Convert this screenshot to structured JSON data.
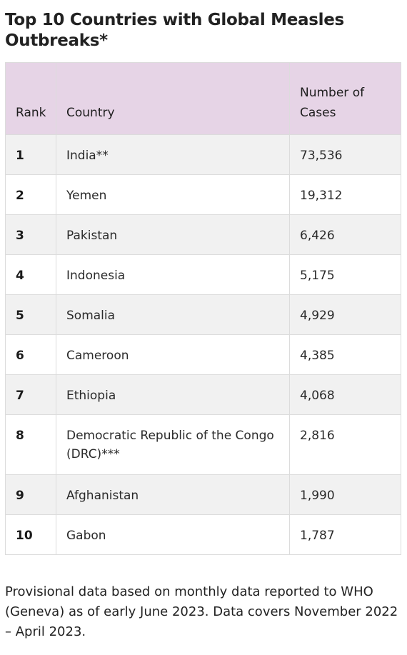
{
  "title": "Top 10 Countries with Global Measles Outbreaks*",
  "table": {
    "headers": {
      "rank": "Rank",
      "country": "Country",
      "cases": "Number of Cases"
    },
    "rows": [
      {
        "rank": "1",
        "country": "India**",
        "cases": "73,536"
      },
      {
        "rank": "2",
        "country": "Yemen",
        "cases": "19,312"
      },
      {
        "rank": "3",
        "country": "Pakistan",
        "cases": "6,426"
      },
      {
        "rank": "4",
        "country": "Indonesia",
        "cases": "5,175"
      },
      {
        "rank": "5",
        "country": "Somalia",
        "cases": "4,929"
      },
      {
        "rank": "6",
        "country": "Cameroon",
        "cases": "4,385"
      },
      {
        "rank": "7",
        "country": "Ethiopia",
        "cases": "4,068"
      },
      {
        "rank": "8",
        "country": "Democratic Republic of the Congo (DRC)***",
        "cases": "2,816"
      },
      {
        "rank": "9",
        "country": "Afghanistan",
        "cases": "1,990"
      },
      {
        "rank": "10",
        "country": "Gabon",
        "cases": "1,787"
      }
    ]
  },
  "footnote": "Provisional data based on monthly data reported to WHO (Geneva) as of early June 2023. Data covers November 2022 – April 2023."
}
